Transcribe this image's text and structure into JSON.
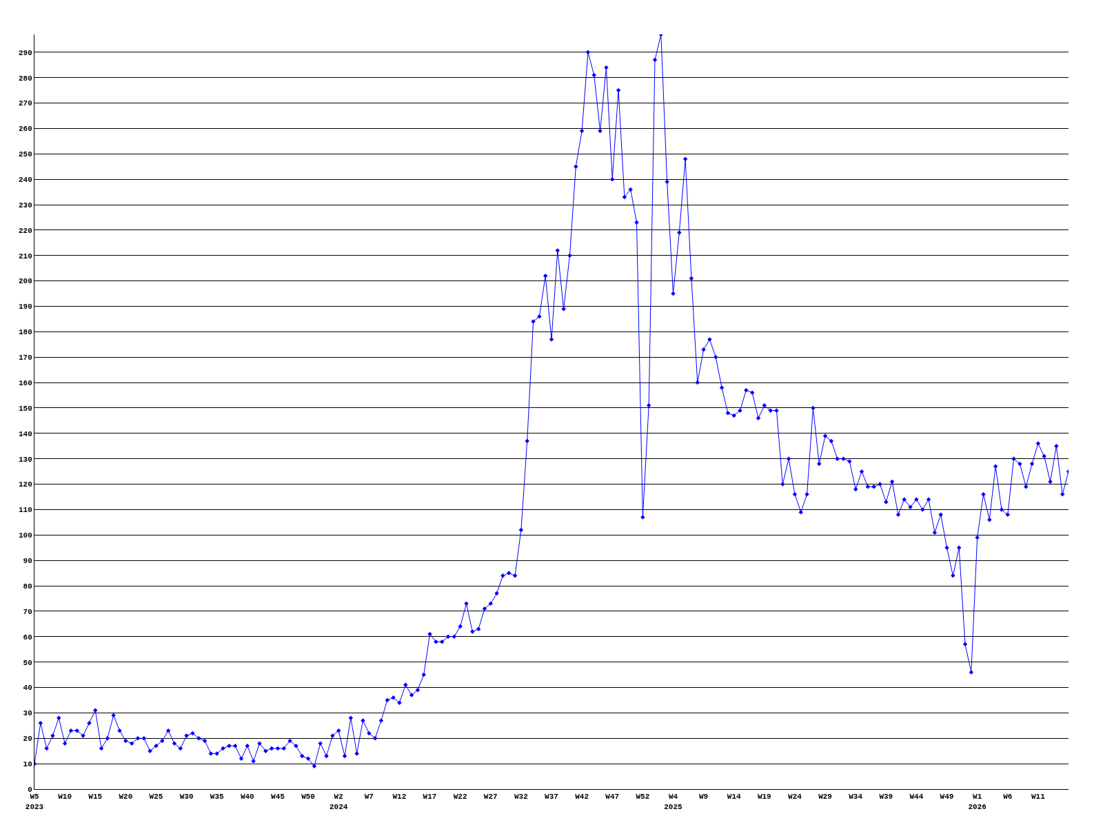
{
  "chart_data": {
    "type": "line",
    "categories": [
      "W5\n2023",
      null,
      null,
      null,
      null,
      "W10",
      null,
      null,
      null,
      null,
      "W15",
      null,
      null,
      null,
      null,
      "W20",
      null,
      null,
      null,
      null,
      "W25",
      null,
      null,
      null,
      null,
      "W30",
      null,
      null,
      null,
      null,
      "W35",
      null,
      null,
      null,
      null,
      "W40",
      null,
      null,
      null,
      null,
      "W45",
      null,
      null,
      null,
      null,
      "W50",
      null,
      null,
      null,
      null,
      "W2\n2024",
      null,
      null,
      null,
      null,
      "W7",
      null,
      null,
      null,
      null,
      "W12",
      null,
      null,
      null,
      null,
      "W17",
      null,
      null,
      null,
      null,
      "W22",
      null,
      null,
      null,
      null,
      "W27",
      null,
      null,
      null,
      null,
      "W32",
      null,
      null,
      null,
      null,
      "W37",
      null,
      null,
      null,
      null,
      "W42",
      null,
      null,
      null,
      null,
      "W47",
      null,
      null,
      null,
      null,
      "W52",
      null,
      null,
      null,
      null,
      "W4\n2025",
      null,
      null,
      null,
      null,
      "W9",
      null,
      null,
      null,
      null,
      "W14",
      null,
      null,
      null,
      null,
      "W19",
      null,
      null,
      null,
      null,
      "W24",
      null,
      null,
      null,
      null,
      "W29",
      null,
      null,
      null,
      null,
      "W34",
      null,
      null,
      null,
      null,
      "W39",
      null,
      null,
      null,
      null,
      "W44",
      null,
      null,
      null,
      null,
      "W49",
      null,
      null,
      null,
      null,
      "W1\n2026",
      null,
      null,
      null,
      null,
      "W6",
      null,
      null,
      null,
      null,
      "W11",
      null,
      null,
      null,
      null,
      null
    ],
    "series": [
      {
        "color": "#0000ff",
        "values": [
          10,
          26,
          16,
          21,
          28,
          18,
          23,
          23,
          21,
          26,
          31,
          16,
          20,
          29,
          23,
          19,
          18,
          20,
          20,
          15,
          17,
          19,
          23,
          18,
          16,
          21,
          22,
          20,
          19,
          14,
          14,
          16,
          17,
          17,
          12,
          17,
          11,
          18,
          15,
          16,
          16,
          16,
          19,
          17,
          13,
          12,
          9,
          18,
          13,
          21,
          23,
          13,
          28,
          14,
          27,
          22,
          20,
          27,
          35,
          36,
          34,
          41,
          37,
          39,
          45,
          61,
          58,
          58,
          60,
          60,
          64,
          73,
          62,
          63,
          71,
          73,
          77,
          84,
          85,
          84,
          102,
          137,
          184,
          186,
          202,
          177,
          212,
          189,
          210,
          245,
          259,
          290,
          281,
          259,
          284,
          240,
          275,
          233,
          236,
          223,
          107,
          151,
          287,
          297,
          239,
          195,
          219,
          248,
          201,
          160,
          173,
          177,
          170,
          158,
          148,
          147,
          149,
          157,
          156,
          146,
          151,
          149,
          149,
          120,
          130,
          116,
          109,
          116,
          150,
          128,
          139,
          137,
          130,
          130,
          129,
          118,
          125,
          119,
          119,
          120,
          113,
          121,
          108,
          114,
          111,
          114,
          110,
          114,
          101,
          108,
          95,
          84,
          95,
          57,
          46,
          99,
          116,
          106,
          127,
          110,
          108,
          130,
          128,
          119,
          128,
          136,
          131,
          121,
          135,
          116,
          125
        ]
      }
    ],
    "ylim": [
      0,
      297
    ],
    "yticks": [
      0,
      10,
      20,
      30,
      40,
      50,
      60,
      70,
      80,
      90,
      100,
      110,
      120,
      130,
      140,
      150,
      160,
      170,
      180,
      190,
      200,
      210,
      220,
      230,
      240,
      250,
      260,
      270,
      280,
      290
    ],
    "grid": "y",
    "marker": "diamond",
    "line_style": "solid"
  }
}
